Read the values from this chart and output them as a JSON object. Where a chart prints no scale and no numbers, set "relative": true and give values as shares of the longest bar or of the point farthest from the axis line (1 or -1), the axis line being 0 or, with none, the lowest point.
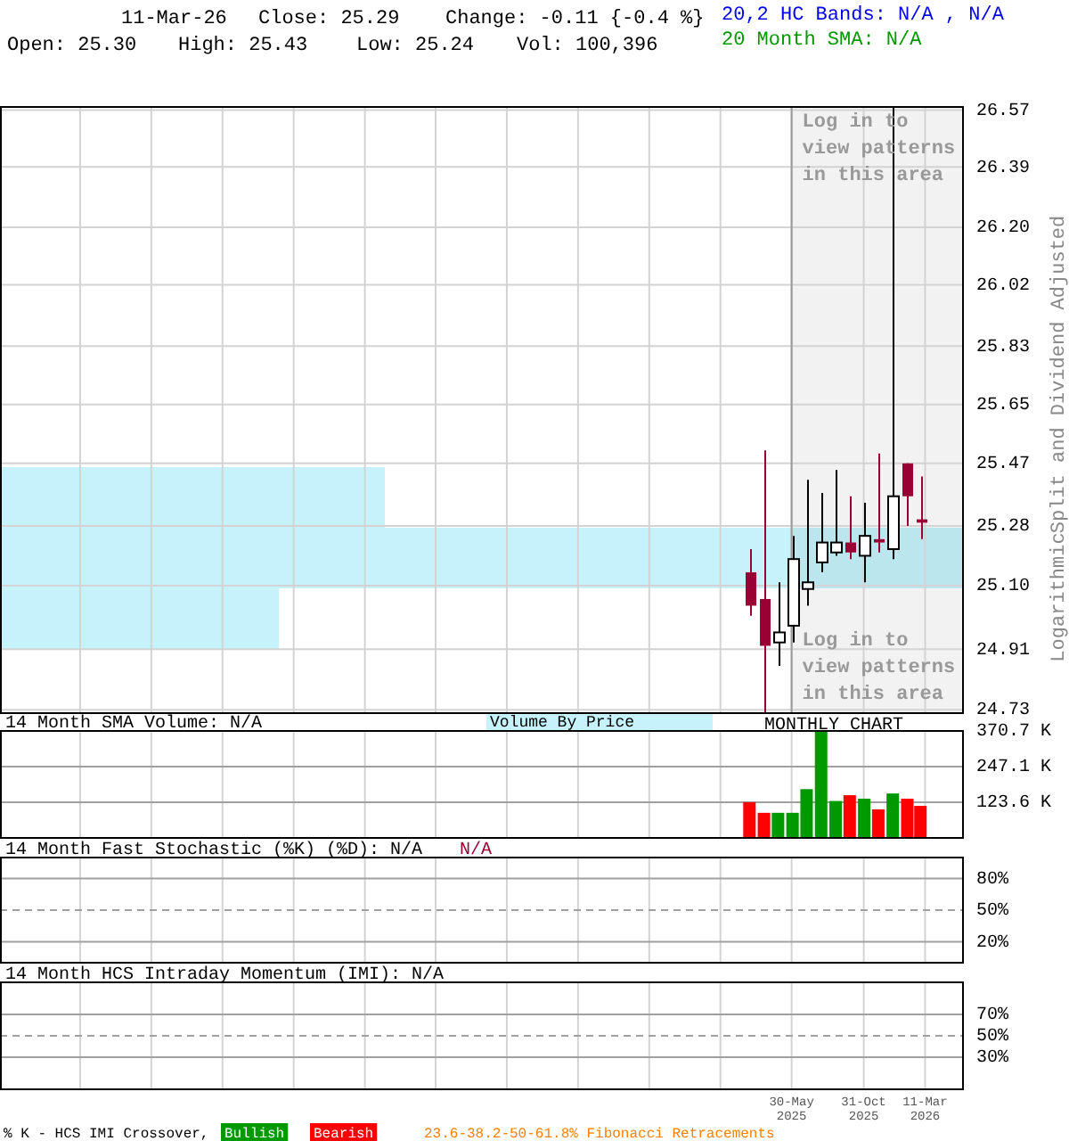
{
  "chart_data": [
    {
      "type": "candlestick",
      "x": [
        "2025-03",
        "2025-04",
        "2025-05",
        "2025-06",
        "2025-07",
        "2025-08",
        "2025-09",
        "2025-10",
        "2025-11",
        "2025-12",
        "2026-01",
        "2026-02",
        "2026-03"
      ],
      "ohlc": [
        [
          25.14,
          25.21,
          25.01,
          25.04
        ],
        [
          25.06,
          25.51,
          24.72,
          24.92
        ],
        [
          24.93,
          25.11,
          24.86,
          24.96
        ],
        [
          24.98,
          25.25,
          24.93,
          25.18
        ],
        [
          25.09,
          25.42,
          25.04,
          25.11
        ],
        [
          25.17,
          25.38,
          25.14,
          25.23
        ],
        [
          25.2,
          25.45,
          25.19,
          25.23
        ],
        [
          25.23,
          25.37,
          25.18,
          25.2
        ],
        [
          25.19,
          25.35,
          25.11,
          25.25
        ],
        [
          25.24,
          25.5,
          25.2,
          25.23
        ],
        [
          25.21,
          26.58,
          25.18,
          25.37
        ],
        [
          25.47,
          25.47,
          25.28,
          25.37
        ],
        [
          25.3,
          25.43,
          25.24,
          25.29
        ]
      ],
      "colors": [
        "#990033",
        "#990033",
        "#000000",
        "#000000",
        "#000000",
        "#000000",
        "#000000",
        "#990033",
        "#000000",
        "#990033",
        "#000000",
        "#990033",
        "#990033"
      ],
      "log": true,
      "xlim": [
        "2020-10-13",
        "2026-05-29"
      ],
      "ylim": [
        24.72,
        26.58
      ],
      "xticks": [
        {
          "value": "2021-04-02",
          "label": null
        },
        {
          "value": "2021-09-01",
          "label": null
        },
        {
          "value": "2022-01-31",
          "label": null
        },
        {
          "value": "2022-07-02",
          "label": null
        },
        {
          "value": "2022-12-01",
          "label": null
        },
        {
          "value": "2023-05-01",
          "label": null
        },
        {
          "value": "2023-09-30",
          "label": null
        },
        {
          "value": "2024-02-29",
          "label": null
        },
        {
          "value": "2024-07-30",
          "label": null
        },
        {
          "value": "2024-12-29",
          "label": null
        },
        {
          "value": "2025-05-30",
          "label": null
        },
        {
          "value": "2025-10-31",
          "label": null
        },
        {
          "value": "2026-03-11",
          "label": null
        }
      ],
      "yticks": [
        24.73,
        24.91,
        {
          "value": 25.1,
          "label": "25.10"
        },
        25.28,
        25.47,
        25.65,
        25.83,
        26.02,
        {
          "value": 26.2,
          "label": "26.20"
        },
        26.39,
        26.57
      ],
      "tick_labels": "y",
      "grid": true,
      "ylabel": "Split and Dividend Adjusted",
      "bands": [
        {
          "axis": "x",
          "from": "2025-05-30",
          "to": "2026-05-29",
          "color": "#f2f2f2"
        }
      ],
      "ref_lines": [
        {
          "axis": "x",
          "value": "2025-05-30",
          "color": "#999999",
          "line_style": "solid"
        }
      ],
      "annotations": [
        "11-Mar-26",
        "Close: 25.29",
        "Change: -0.11 {-0.4 %}",
        "Open: 25.30",
        "High: 25.43",
        "Low: 25.24",
        "Vol: 100,396",
        "20,2 HC Bands: N/A , N/A",
        "20 Month SMA: N/A",
        "Log in to view patterns in this area",
        "Log in to view patterns in this area",
        "Logarithmic"
      ]
    },
    {
      "type": "bar",
      "orientation": "horizontal",
      "relative": true,
      "categories": [
        null,
        null,
        null
      ],
      "values": [
        0.4,
        1,
        0.29
      ],
      "color": "#c6f3fb",
      "title": "Volume By Price"
    },
    {
      "type": "bar",
      "x": [
        "2025-03",
        "2025-04",
        "2025-05",
        "2025-06",
        "2025-07",
        "2025-08",
        "2025-09",
        "2025-10",
        "2025-11",
        "2025-12",
        "2026-01",
        "2026-02",
        "2026-03"
      ],
      "values": [
        124000,
        87000,
        87000,
        87000,
        169000,
        370700,
        128000,
        148000,
        136000,
        99000,
        154000,
        136000,
        111000
      ],
      "colors": [
        "#ff0000",
        "#ff0000",
        "#009900",
        "#009900",
        "#009900",
        "#009900",
        "#009900",
        "#ff0000",
        "#009900",
        "#ff0000",
        "#009900",
        "#ff0000",
        "#ff0000"
      ],
      "xlim": [
        "2020-10-13",
        "2026-05-29"
      ],
      "ylim": [
        0,
        370700
      ],
      "xticks": [
        {
          "value": "2021-04-02",
          "label": null
        },
        {
          "value": "2021-09-01",
          "label": null
        },
        {
          "value": "2022-01-31",
          "label": null
        },
        {
          "value": "2022-07-02",
          "label": null
        },
        {
          "value": "2022-12-01",
          "label": null
        },
        {
          "value": "2023-05-01",
          "label": null
        },
        {
          "value": "2023-09-30",
          "label": null
        },
        {
          "value": "2024-02-29",
          "label": null
        },
        {
          "value": "2024-07-30",
          "label": null
        },
        {
          "value": "2024-12-29",
          "label": null
        },
        {
          "value": "2025-05-30",
          "label": null
        },
        {
          "value": "2025-10-31",
          "label": null
        },
        {
          "value": "2026-03-11",
          "label": null
        }
      ],
      "yticks": [
        {
          "value": 123600,
          "label": "123.6 K"
        },
        {
          "value": 247100,
          "label": "247.1 K"
        },
        {
          "value": 370700,
          "label": "370.7 K"
        }
      ],
      "tick_labels": "y",
      "grid": true,
      "title": "14 Month SMA Volume: N/A",
      "annotations": [
        "MONTHLY CHART"
      ]
    },
    {
      "type": "line",
      "xlim": [
        "2020-10-13",
        "2026-05-29"
      ],
      "ylim": [
        0,
        100
      ],
      "xticks": [
        {
          "value": "2021-04-02",
          "label": null
        },
        {
          "value": "2021-09-01",
          "label": null
        },
        {
          "value": "2022-01-31",
          "label": null
        },
        {
          "value": "2022-07-02",
          "label": null
        },
        {
          "value": "2022-12-01",
          "label": null
        },
        {
          "value": "2023-05-01",
          "label": null
        },
        {
          "value": "2023-09-30",
          "label": null
        },
        {
          "value": "2024-02-29",
          "label": null
        },
        {
          "value": "2024-07-30",
          "label": null
        },
        {
          "value": "2024-12-29",
          "label": null
        },
        {
          "value": "2025-05-30",
          "label": null
        },
        {
          "value": "2025-10-31",
          "label": null
        },
        {
          "value": "2026-03-11",
          "label": null
        }
      ],
      "yticks": [
        {
          "value": 80,
          "label": "80%"
        },
        {
          "value": 50,
          "label": "50%"
        },
        {
          "value": 20,
          "label": "20%"
        }
      ],
      "tick_labels": "y",
      "grid": "x",
      "title": "14 Month Fast Stochastic (%K) (%D): N/A",
      "annotations": [
        "N/A"
      ],
      "ref_lines": [
        {
          "axis": "y",
          "value": 80,
          "color": "#a0a0a0",
          "line_style": "solid"
        },
        {
          "axis": "y",
          "value": 50,
          "color": "#a0a0a0",
          "line_style": "dashed"
        },
        {
          "axis": "y",
          "value": 20,
          "color": "#a0a0a0",
          "line_style": "solid"
        }
      ]
    },
    {
      "type": "line",
      "xlim": [
        "2020-10-13",
        "2026-05-29"
      ],
      "ylim": [
        0,
        100
      ],
      "xticks": [
        {
          "value": "2021-04-02",
          "label": null
        },
        {
          "value": "2021-09-01",
          "label": null
        },
        {
          "value": "2022-01-31",
          "label": null
        },
        {
          "value": "2022-07-02",
          "label": null
        },
        {
          "value": "2022-12-01",
          "label": null
        },
        {
          "value": "2023-05-01",
          "label": null
        },
        {
          "value": "2023-09-30",
          "label": null
        },
        {
          "value": "2024-02-29",
          "label": null
        },
        {
          "value": "2024-07-30",
          "label": null
        },
        {
          "value": "2024-12-29",
          "label": null
        },
        {
          "value": "2025-05-30",
          "label": "30-May 2025"
        },
        {
          "value": "2025-10-31",
          "label": "31-Oct 2025"
        },
        {
          "value": "2026-03-11",
          "label": "11-Mar 2026"
        }
      ],
      "yticks": [
        {
          "value": 70,
          "label": "70%"
        },
        {
          "value": 50,
          "label": "50%"
        },
        {
          "value": 30,
          "label": "30%"
        }
      ],
      "grid": "x",
      "title": "14 Month HCS Intraday Momentum (IMI): N/A",
      "ref_lines": [
        {
          "axis": "y",
          "value": 70,
          "color": "#a0a0a0",
          "line_style": "solid"
        },
        {
          "axis": "y",
          "value": 50,
          "color": "#a0a0a0",
          "line_style": "dashed"
        },
        {
          "axis": "y",
          "value": 30,
          "color": "#a0a0a0",
          "line_style": "solid"
        }
      ],
      "annotations": [
        "% K - HCS IMI Crossover,",
        "Bullish",
        "Bearish",
        "23.6-38.2-50-61.8% Fibonacci Retracements"
      ]
    }
  ]
}
